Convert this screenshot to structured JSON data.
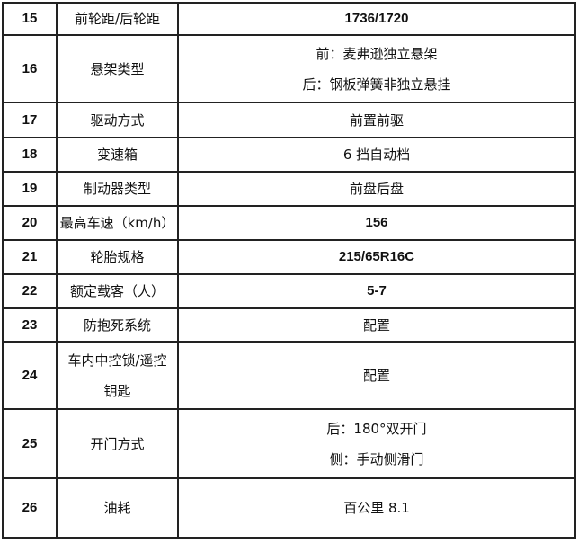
{
  "rows": [
    {
      "no": "15",
      "item": [
        "前轮距/后轮距"
      ],
      "value": [
        "1736/1720"
      ],
      "value_bold": true
    },
    {
      "no": "16",
      "item": [
        "悬架类型"
      ],
      "value": [
        "前：麦弗逊独立悬架",
        "后：钢板弹簧非独立悬挂"
      ]
    },
    {
      "no": "17",
      "item": [
        "驱动方式"
      ],
      "value": [
        "前置前驱"
      ]
    },
    {
      "no": "18",
      "item": [
        "变速箱"
      ],
      "value": [
        "6 挡自动档"
      ]
    },
    {
      "no": "19",
      "item": [
        "制动器类型"
      ],
      "value": [
        "前盘后盘"
      ]
    },
    {
      "no": "20",
      "item": [
        "最高车速（km/h）"
      ],
      "value": [
        "156"
      ],
      "value_bold": true
    },
    {
      "no": "21",
      "item": [
        "轮胎规格"
      ],
      "value": [
        "215/65R16C"
      ],
      "value_bold": true
    },
    {
      "no": "22",
      "item": [
        "额定载客（人）"
      ],
      "value": [
        "5-7"
      ],
      "value_bold": true
    },
    {
      "no": "23",
      "item": [
        "防抱死系统"
      ],
      "value": [
        "配置"
      ]
    },
    {
      "no": "24",
      "item": [
        "车内中控锁/遥控",
        "钥匙"
      ],
      "value": [
        "配置"
      ]
    },
    {
      "no": "25",
      "item": [
        "开门方式"
      ],
      "value": [
        "后：180°双开门",
        "侧：手动侧滑门"
      ]
    },
    {
      "no": "26",
      "item": [
        "油耗"
      ],
      "value": [
        "百公里 8.1"
      ]
    }
  ]
}
